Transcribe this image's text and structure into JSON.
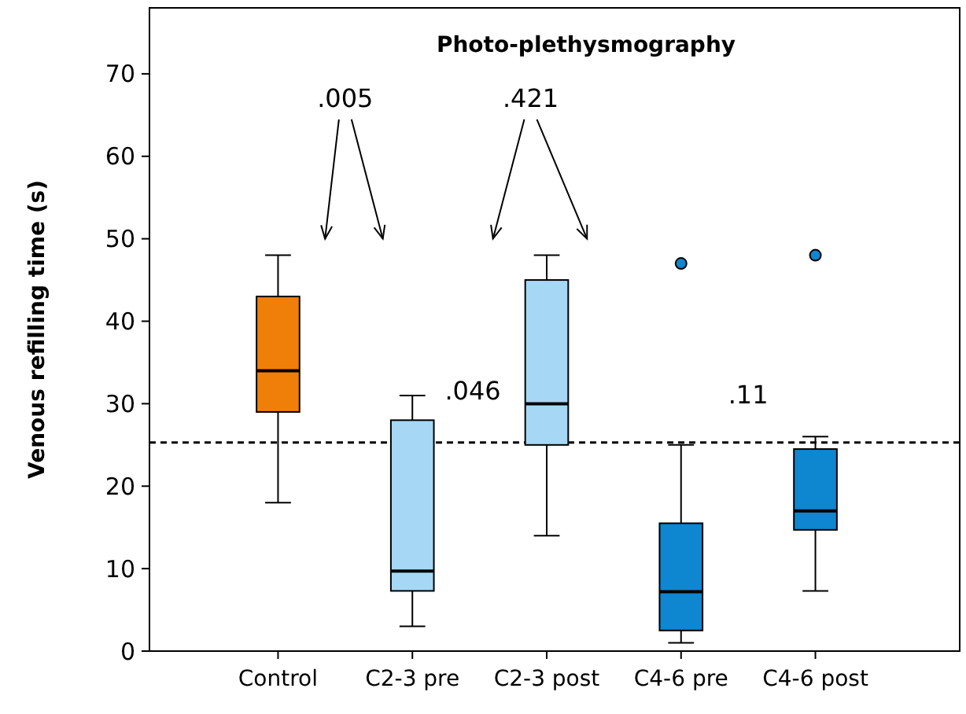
{
  "chart_data": {
    "type": "box",
    "title": "Photo-plethysmography",
    "ylabel": "Venous refilling time (s)",
    "categories": [
      "Control",
      "C2-3 pre",
      "C2-3 post",
      "C4-6 pre",
      "C4-6 post"
    ],
    "colors": [
      "#f07f09",
      "#a6d8f5",
      "#a6d8f5",
      "#0e86d0",
      "#0e86d0"
    ],
    "boxes": [
      {
        "low": 18,
        "q1": 29,
        "median": 34,
        "q3": 43,
        "high": 48
      },
      {
        "low": 3,
        "q1": 7.3,
        "median": 9.7,
        "q3": 28,
        "high": 31
      },
      {
        "low": 14,
        "q1": 25,
        "median": 30,
        "q3": 45,
        "high": 48
      },
      {
        "low": 1,
        "q1": 2.5,
        "median": 7.2,
        "q3": 15.5,
        "high": 25,
        "outliers": [
          47
        ]
      },
      {
        "low": 7.3,
        "q1": 14.7,
        "median": 17,
        "q3": 24.5,
        "high": 26,
        "outliers": [
          48
        ]
      }
    ],
    "ylim": [
      0,
      78
    ],
    "yticks": [
      0,
      10,
      20,
      30,
      40,
      50,
      60,
      70
    ],
    "ref_lines": [
      {
        "axis": "y",
        "value": 25.3,
        "line_style": "dashed"
      }
    ],
    "annotations": [
      ".005",
      ".421",
      ".046",
      ".11"
    ],
    "grid": false
  }
}
